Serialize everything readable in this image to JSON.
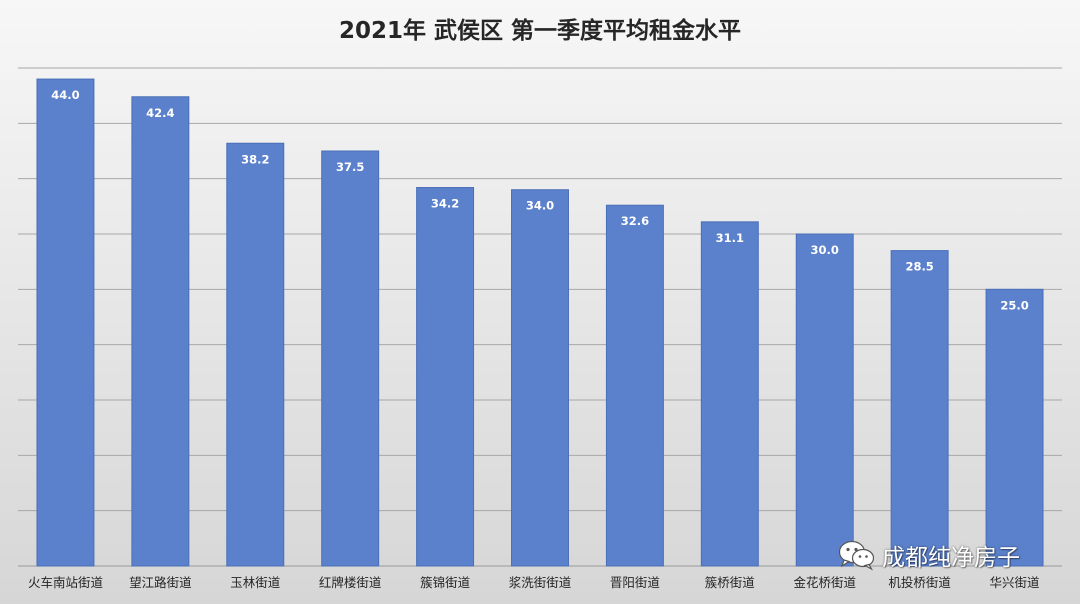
{
  "chart_data": {
    "type": "bar",
    "title": "2021年 武侯区 第一季度平均租金水平",
    "categories": [
      "火车南站街道",
      "望江路街道",
      "玉林街道",
      "红牌楼街道",
      "簇锦街道",
      "浆洗街街道",
      "晋阳街道",
      "簇桥街道",
      "金花桥街道",
      "机投桥街道",
      "华兴街道"
    ],
    "values": [
      44.0,
      42.4,
      38.2,
      37.5,
      34.2,
      34.0,
      32.6,
      31.1,
      30.0,
      28.5,
      25.0
    ],
    "value_labels": [
      "44.0",
      "42.4",
      "38.2",
      "37.5",
      "34.2",
      "34.0",
      "32.6",
      "31.1",
      "30.0",
      "28.5",
      "25.0"
    ],
    "ylim": [
      0,
      45
    ],
    "gridline_step": 5,
    "grid": true,
    "legend": "none",
    "bar_color": "#5b81cc",
    "bar_edge_color": "#4a6fb8"
  },
  "watermark": {
    "text": "成都纯净房子",
    "icon": "wechat-icon"
  }
}
